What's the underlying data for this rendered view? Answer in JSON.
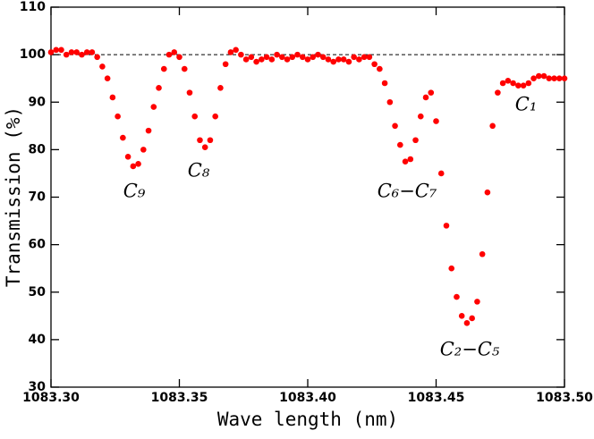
{
  "chart_data": {
    "type": "scatter",
    "xlabel": "Wave length (nm)",
    "ylabel": "Transmission (%)",
    "xlim": [
      1083.3,
      1083.5
    ],
    "ylim": [
      30,
      110
    ],
    "xticks": [
      {
        "value": 1083.3,
        "label": "1083.30"
      },
      {
        "value": 1083.35,
        "label": "1083.35"
      },
      {
        "value": 1083.4,
        "label": "1083.40"
      },
      {
        "value": 1083.45,
        "label": "1083.45"
      },
      {
        "value": 1083.5,
        "label": "1083.50"
      }
    ],
    "yticks": [
      30,
      40,
      50,
      60,
      70,
      80,
      90,
      100,
      110
    ],
    "hline": 100,
    "color": "#ff0000",
    "annotations": [
      "C₉",
      "C₈",
      "C₆−C₇",
      "C₂−C₅",
      "C₁"
    ],
    "x": [
      1083.3,
      1083.302,
      1083.304,
      1083.306,
      1083.308,
      1083.31,
      1083.312,
      1083.314,
      1083.316,
      1083.318,
      1083.32,
      1083.322,
      1083.324,
      1083.326,
      1083.328,
      1083.33,
      1083.332,
      1083.334,
      1083.336,
      1083.338,
      1083.34,
      1083.342,
      1083.344,
      1083.346,
      1083.348,
      1083.35,
      1083.352,
      1083.354,
      1083.356,
      1083.358,
      1083.36,
      1083.362,
      1083.364,
      1083.366,
      1083.368,
      1083.37,
      1083.372,
      1083.374,
      1083.376,
      1083.378,
      1083.38,
      1083.382,
      1083.384,
      1083.386,
      1083.388,
      1083.39,
      1083.392,
      1083.394,
      1083.396,
      1083.398,
      1083.4,
      1083.402,
      1083.404,
      1083.406,
      1083.408,
      1083.41,
      1083.412,
      1083.414,
      1083.416,
      1083.418,
      1083.42,
      1083.422,
      1083.424,
      1083.426,
      1083.428,
      1083.43,
      1083.432,
      1083.434,
      1083.436,
      1083.438,
      1083.44,
      1083.442,
      1083.444,
      1083.446,
      1083.448,
      1083.45,
      1083.452,
      1083.454,
      1083.456,
      1083.458,
      1083.46,
      1083.462,
      1083.464,
      1083.466,
      1083.468,
      1083.47,
      1083.472,
      1083.474,
      1083.476,
      1083.478,
      1083.48,
      1083.482,
      1083.484,
      1083.486,
      1083.488,
      1083.49,
      1083.492,
      1083.494,
      1083.496,
      1083.498,
      1083.5
    ],
    "values": [
      100.5,
      101,
      101,
      100,
      100.5,
      100.5,
      100,
      100.5,
      100.5,
      99.5,
      97.5,
      95,
      91,
      87,
      82.5,
      78.5,
      76.5,
      77,
      80,
      84,
      89,
      93,
      97,
      100,
      100.5,
      99.5,
      97,
      92,
      87,
      82,
      80.5,
      82,
      87,
      93,
      98,
      100.5,
      101,
      100,
      99,
      99.5,
      98.5,
      99,
      99.5,
      99,
      100,
      99.5,
      99,
      99.5,
      100,
      99.5,
      99,
      99.5,
      100,
      99.5,
      99,
      98.5,
      99,
      99,
      98.5,
      99.5,
      99,
      99.5,
      99.5,
      98,
      97,
      94,
      90,
      85,
      81,
      77.5,
      78,
      82,
      87,
      91,
      92,
      86,
      75,
      64,
      55,
      49,
      45,
      43.5,
      44.5,
      48,
      58,
      71,
      85,
      92,
      94,
      94.5,
      94,
      93.5,
      93.5,
      94,
      95,
      95.5,
      95.5,
      95,
      95,
      95,
      95
    ]
  }
}
